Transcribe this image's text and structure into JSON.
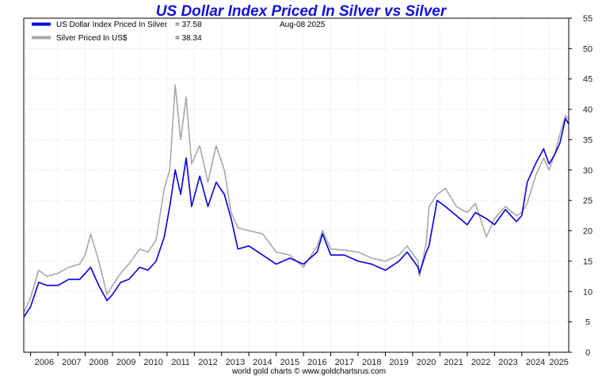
{
  "chart_data": {
    "type": "line",
    "title": "US Dollar Index Priced In Silver vs Silver",
    "date_label": "Aug-08  2025",
    "footer": "world gold charts © www.goldchartsrus.com",
    "xlabel": "",
    "ylabel": "",
    "ylim": [
      0,
      55
    ],
    "xlim": [
      2005.75,
      2025.72
    ],
    "yticks": [
      "0",
      "5",
      "10",
      "15",
      "20",
      "25",
      "30",
      "35",
      "40",
      "45",
      "50",
      "55"
    ],
    "xticks": [
      "2006",
      "2007",
      "2008",
      "2009",
      "2010",
      "2011",
      "2012",
      "2013",
      "2014",
      "2015",
      "2016",
      "2017",
      "2018",
      "2019",
      "2020",
      "2021",
      "2022",
      "2023",
      "2024",
      "2025"
    ],
    "grid": true,
    "legend_position": "top-left",
    "series": [
      {
        "name": "US Dollar Index Priced In Silver",
        "legend_label": "US Dollar Index Priced In Silver",
        "legend_value": "= 37.58",
        "color": "#0000e6",
        "x": [
          2005.75,
          2006.0,
          2006.3,
          2006.6,
          2007.0,
          2007.4,
          2007.8,
          2008.0,
          2008.2,
          2008.5,
          2008.8,
          2009.0,
          2009.3,
          2009.6,
          2010.0,
          2010.3,
          2010.6,
          2010.9,
          2011.1,
          2011.3,
          2011.5,
          2011.7,
          2011.9,
          2012.2,
          2012.5,
          2012.8,
          2013.1,
          2013.35,
          2013.6,
          2014.0,
          2014.5,
          2015.0,
          2015.5,
          2016.0,
          2016.5,
          2016.7,
          2017.0,
          2017.5,
          2018.0,
          2018.5,
          2019.0,
          2019.5,
          2019.8,
          2020.2,
          2020.25,
          2020.5,
          2020.6,
          2020.9,
          2021.2,
          2021.6,
          2022.0,
          2022.3,
          2022.7,
          2023.0,
          2023.4,
          2023.8,
          2024.0,
          2024.2,
          2024.5,
          2024.8,
          2025.0,
          2025.2,
          2025.4,
          2025.6,
          2025.72
        ],
        "values": [
          5.8,
          7.5,
          11.5,
          11.0,
          11.0,
          12.0,
          12.0,
          13.0,
          14.0,
          11.0,
          8.5,
          9.5,
          11.5,
          12.0,
          14.0,
          13.5,
          15.0,
          19.0,
          24.0,
          30.0,
          26.0,
          32.0,
          24.0,
          29.0,
          24.0,
          28.0,
          26.0,
          22.0,
          17.0,
          17.5,
          16.0,
          14.5,
          15.5,
          14.5,
          16.5,
          19.5,
          16.0,
          16.0,
          15.0,
          14.5,
          13.5,
          15.0,
          16.5,
          14.0,
          13.0,
          16.5,
          17.5,
          25.0,
          24.0,
          22.5,
          21.0,
          23.0,
          22.0,
          21.0,
          23.5,
          21.5,
          22.5,
          28.0,
          31.0,
          33.5,
          31.0,
          32.5,
          34.5,
          38.5,
          37.58
        ]
      },
      {
        "name": "Silver Priced In US$",
        "legend_label": "Silver Priced In US$",
        "legend_value": "= 38.34",
        "color": "#a8a8a8",
        "x": [
          2005.75,
          2006.0,
          2006.3,
          2006.6,
          2007.0,
          2007.4,
          2007.8,
          2008.0,
          2008.2,
          2008.5,
          2008.8,
          2009.0,
          2009.3,
          2009.6,
          2010.0,
          2010.3,
          2010.6,
          2010.9,
          2011.1,
          2011.3,
          2011.5,
          2011.7,
          2011.9,
          2012.2,
          2012.5,
          2012.8,
          2013.1,
          2013.35,
          2013.6,
          2014.0,
          2014.5,
          2015.0,
          2015.5,
          2016.0,
          2016.5,
          2016.7,
          2017.0,
          2017.5,
          2018.0,
          2018.5,
          2019.0,
          2019.5,
          2019.8,
          2020.2,
          2020.25,
          2020.5,
          2020.6,
          2020.9,
          2021.2,
          2021.6,
          2022.0,
          2022.3,
          2022.7,
          2023.0,
          2023.4,
          2023.8,
          2024.0,
          2024.2,
          2024.5,
          2024.8,
          2025.0,
          2025.2,
          2025.4,
          2025.6,
          2025.72
        ],
        "values": [
          6.5,
          9.0,
          13.5,
          12.5,
          13.0,
          14.0,
          14.5,
          16.0,
          19.5,
          15.0,
          9.5,
          11.0,
          13.0,
          14.5,
          17.0,
          16.5,
          18.5,
          27.0,
          30.0,
          44.0,
          35.0,
          42.0,
          31.0,
          34.0,
          28.0,
          34.0,
          30.0,
          23.0,
          20.5,
          20.0,
          19.5,
          16.5,
          16.0,
          14.0,
          17.5,
          20.0,
          17.0,
          16.8,
          16.5,
          15.5,
          15.0,
          16.0,
          17.5,
          15.0,
          12.5,
          18.0,
          24.0,
          26.0,
          27.0,
          24.0,
          23.0,
          24.5,
          19.0,
          22.0,
          24.0,
          22.5,
          23.0,
          24.5,
          29.0,
          32.0,
          30.0,
          32.5,
          36.0,
          39.0,
          38.34
        ]
      }
    ]
  }
}
